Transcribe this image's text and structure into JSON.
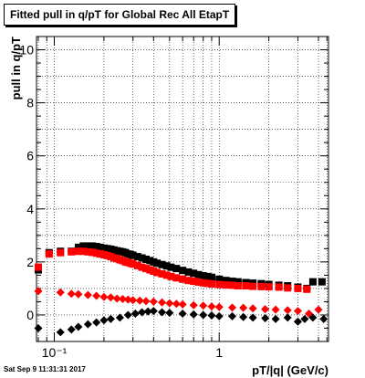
{
  "footer": {
    "timestamp": "Sat Sep  9 11:31:31 2017"
  },
  "chart_data": {
    "type": "scatter",
    "title": "Fitted pull in q/pT for Global Rec All EtapT",
    "xlabel": "pT/|q| (GeV/c)",
    "ylabel": "pull in q/pT",
    "xscale": "log",
    "xlim": [
      0.078,
      4.6
    ],
    "ylim": [
      -1.0,
      10.5
    ],
    "x_ticklabels": [
      {
        "value": 0.1,
        "label": "10⁻¹"
      },
      {
        "value": 1,
        "label": "1"
      }
    ],
    "y_ticklabels": [
      {
        "value": 0,
        "label": "0"
      },
      {
        "value": 2,
        "label": "2"
      },
      {
        "value": 4,
        "label": "4"
      },
      {
        "value": 6,
        "label": "6"
      },
      {
        "value": 8,
        "label": "8"
      },
      {
        "value": 10,
        "label": "10"
      }
    ],
    "grid": true,
    "series": [
      {
        "color": "#000000",
        "marker": "square",
        "points": [
          [
            0.08,
            1.7
          ],
          [
            0.093,
            2.35
          ],
          [
            0.109,
            2.4
          ],
          [
            0.127,
            2.4
          ],
          [
            0.14,
            2.55
          ],
          [
            0.15,
            2.6
          ],
          [
            0.16,
            2.6
          ],
          [
            0.17,
            2.6
          ],
          [
            0.18,
            2.58
          ],
          [
            0.19,
            2.55
          ],
          [
            0.2,
            2.52
          ],
          [
            0.21,
            2.5
          ],
          [
            0.22,
            2.48
          ],
          [
            0.23,
            2.45
          ],
          [
            0.24,
            2.42
          ],
          [
            0.25,
            2.4
          ],
          [
            0.26,
            2.38
          ],
          [
            0.27,
            2.35
          ],
          [
            0.28,
            2.3
          ],
          [
            0.29,
            2.28
          ],
          [
            0.3,
            2.25
          ],
          [
            0.32,
            2.2
          ],
          [
            0.34,
            2.15
          ],
          [
            0.36,
            2.1
          ],
          [
            0.38,
            2.05
          ],
          [
            0.4,
            2.0
          ],
          [
            0.42,
            1.95
          ],
          [
            0.45,
            1.9
          ],
          [
            0.48,
            1.85
          ],
          [
            0.51,
            1.8
          ],
          [
            0.55,
            1.75
          ],
          [
            0.6,
            1.68
          ],
          [
            0.65,
            1.62
          ],
          [
            0.7,
            1.57
          ],
          [
            0.75,
            1.52
          ],
          [
            0.8,
            1.48
          ],
          [
            0.85,
            1.45
          ],
          [
            0.9,
            1.42
          ],
          [
            1.0,
            1.35
          ],
          [
            1.1,
            1.3
          ],
          [
            1.2,
            1.27
          ],
          [
            1.3,
            1.25
          ],
          [
            1.45,
            1.22
          ],
          [
            1.6,
            1.2
          ],
          [
            1.8,
            1.18
          ],
          [
            2.0,
            1.15
          ],
          [
            2.3,
            1.12
          ],
          [
            2.6,
            1.1
          ],
          [
            3.0,
            1.05
          ],
          [
            3.4,
            1.0
          ],
          [
            3.7,
            1.25
          ],
          [
            4.2,
            1.25
          ]
        ]
      },
      {
        "color": "#ff0000",
        "marker": "square",
        "points": [
          [
            0.08,
            1.8
          ],
          [
            0.093,
            2.3
          ],
          [
            0.109,
            2.35
          ],
          [
            0.127,
            2.38
          ],
          [
            0.14,
            2.4
          ],
          [
            0.15,
            2.4
          ],
          [
            0.16,
            2.38
          ],
          [
            0.17,
            2.36
          ],
          [
            0.18,
            2.33
          ],
          [
            0.19,
            2.3
          ],
          [
            0.2,
            2.27
          ],
          [
            0.21,
            2.24
          ],
          [
            0.22,
            2.2
          ],
          [
            0.23,
            2.15
          ],
          [
            0.24,
            2.12
          ],
          [
            0.25,
            2.08
          ],
          [
            0.26,
            2.05
          ],
          [
            0.27,
            2.0
          ],
          [
            0.28,
            1.98
          ],
          [
            0.29,
            1.95
          ],
          [
            0.3,
            1.92
          ],
          [
            0.32,
            1.86
          ],
          [
            0.34,
            1.8
          ],
          [
            0.36,
            1.75
          ],
          [
            0.38,
            1.7
          ],
          [
            0.4,
            1.65
          ],
          [
            0.42,
            1.6
          ],
          [
            0.45,
            1.55
          ],
          [
            0.48,
            1.5
          ],
          [
            0.51,
            1.45
          ],
          [
            0.55,
            1.4
          ],
          [
            0.6,
            1.35
          ],
          [
            0.65,
            1.3
          ],
          [
            0.7,
            1.27
          ],
          [
            0.75,
            1.24
          ],
          [
            0.8,
            1.21
          ],
          [
            0.85,
            1.19
          ],
          [
            0.9,
            1.17
          ],
          [
            1.0,
            1.15
          ],
          [
            1.1,
            1.13
          ],
          [
            1.2,
            1.12
          ],
          [
            1.3,
            1.1
          ],
          [
            1.45,
            1.1
          ],
          [
            1.6,
            1.08
          ],
          [
            1.8,
            1.07
          ],
          [
            2.0,
            1.06
          ],
          [
            2.3,
            1.05
          ],
          [
            2.6,
            1.02
          ],
          [
            3.0,
            1.0
          ],
          [
            3.4,
            0.97
          ]
        ]
      },
      {
        "color": "#ff0000",
        "marker": "diamond",
        "points": [
          [
            0.08,
            0.9
          ],
          [
            0.109,
            0.85
          ],
          [
            0.127,
            0.8
          ],
          [
            0.14,
            0.78
          ],
          [
            0.16,
            0.75
          ],
          [
            0.18,
            0.72
          ],
          [
            0.2,
            0.68
          ],
          [
            0.22,
            0.66
          ],
          [
            0.24,
            0.62
          ],
          [
            0.26,
            0.6
          ],
          [
            0.28,
            0.58
          ],
          [
            0.3,
            0.56
          ],
          [
            0.33,
            0.54
          ],
          [
            0.36,
            0.52
          ],
          [
            0.4,
            0.5
          ],
          [
            0.45,
            0.47
          ],
          [
            0.5,
            0.44
          ],
          [
            0.55,
            0.42
          ],
          [
            0.6,
            0.4
          ],
          [
            0.7,
            0.37
          ],
          [
            0.8,
            0.35
          ],
          [
            0.9,
            0.32
          ],
          [
            1.0,
            0.3
          ],
          [
            1.2,
            0.28
          ],
          [
            1.4,
            0.27
          ],
          [
            1.6,
            0.25
          ],
          [
            1.9,
            0.22
          ],
          [
            2.2,
            0.2
          ],
          [
            2.6,
            0.18
          ],
          [
            3.0,
            0.15
          ],
          [
            3.5,
            0.05
          ],
          [
            4.0,
            0.2
          ]
        ]
      },
      {
        "color": "#000000",
        "marker": "diamond",
        "points": [
          [
            0.08,
            -0.5
          ],
          [
            0.109,
            -0.65
          ],
          [
            0.127,
            -0.55
          ],
          [
            0.14,
            -0.45
          ],
          [
            0.16,
            -0.35
          ],
          [
            0.18,
            -0.28
          ],
          [
            0.2,
            -0.2
          ],
          [
            0.22,
            -0.15
          ],
          [
            0.25,
            -0.1
          ],
          [
            0.28,
            0.0
          ],
          [
            0.31,
            0.05
          ],
          [
            0.34,
            0.1
          ],
          [
            0.37,
            0.13
          ],
          [
            0.4,
            0.15
          ],
          [
            0.45,
            0.1
          ],
          [
            0.5,
            0.08
          ],
          [
            0.6,
            0.05
          ],
          [
            0.7,
            0.02
          ],
          [
            0.8,
            0.0
          ],
          [
            0.9,
            -0.02
          ],
          [
            1.0,
            -0.05
          ],
          [
            1.2,
            -0.05
          ],
          [
            1.4,
            -0.08
          ],
          [
            1.6,
            -0.1
          ],
          [
            1.9,
            -0.12
          ],
          [
            2.2,
            -0.15
          ],
          [
            2.6,
            -0.1
          ],
          [
            3.0,
            -0.25
          ],
          [
            3.3,
            -0.15
          ],
          [
            3.7,
            -0.1
          ],
          [
            4.3,
            -0.15
          ]
        ]
      }
    ]
  }
}
